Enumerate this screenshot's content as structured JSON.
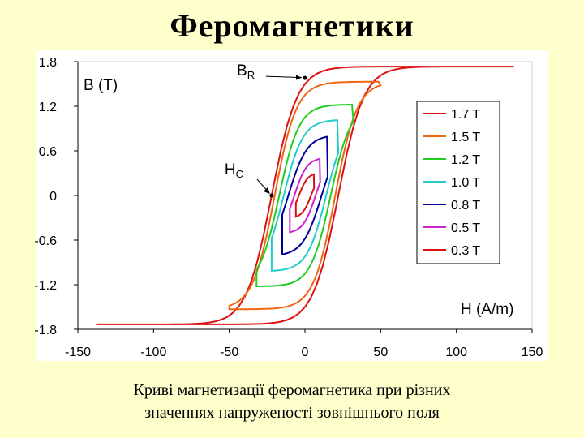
{
  "slide": {
    "title": "Феромагнетики",
    "caption_line1": "Криві магнетизації феромагнетика при різних",
    "caption_line2": "значеннях напруженості зовнішнього поля"
  },
  "chart_data": {
    "type": "line",
    "title": "",
    "xlabel": "H (A/m)",
    "ylabel": "B (T)",
    "xlim": [
      -150,
      150
    ],
    "ylim": [
      -1.8,
      1.8
    ],
    "xticks": [
      -150,
      -100,
      -50,
      0,
      50,
      100,
      150
    ],
    "yticks": [
      1.8,
      1.2,
      0.6,
      0,
      -0.6,
      -1.2,
      -1.8
    ],
    "xtick_labels": [
      "-150",
      "-100",
      "-50",
      "0",
      "50",
      "100",
      "150"
    ],
    "ytick_labels": [
      "1.8",
      "1.2",
      "0.6",
      "0",
      "-0.6",
      "-1.2",
      "-1.8"
    ],
    "grid": false,
    "legend_position": "right",
    "series": [
      {
        "name": "1.7 T",
        "color": "#dd1111",
        "bmax": 1.7,
        "hmax": 138,
        "hc": 22,
        "br": 1.5
      },
      {
        "name": "1.5 T",
        "color": "#ee6611",
        "bmax": 1.5,
        "hmax": 50,
        "hc": 20,
        "br": 1.35
      },
      {
        "name": "1.2 T",
        "color": "#22cc22",
        "bmax": 1.2,
        "hmax": 32,
        "hc": 17,
        "br": 1.05
      },
      {
        "name": "1.0 T",
        "color": "#22cccc",
        "bmax": 1.0,
        "hmax": 22,
        "hc": 14,
        "br": 0.82
      },
      {
        "name": "0.8 T",
        "color": "#000099",
        "bmax": 0.8,
        "hmax": 15,
        "hc": 11,
        "br": 0.58
      },
      {
        "name": "0.5 T",
        "color": "#cc22cc",
        "bmax": 0.5,
        "hmax": 10,
        "hc": 7,
        "br": 0.35
      },
      {
        "name": "0.3 T",
        "color": "#dd1111",
        "bmax": 0.3,
        "hmax": 6,
        "hc": 4,
        "br": 0.18
      }
    ],
    "annotations": [
      {
        "label": "B",
        "sub": "R",
        "point": [
          0,
          1.58
        ]
      },
      {
        "label": "H",
        "sub": "C",
        "point": [
          -22,
          0
        ]
      }
    ]
  }
}
